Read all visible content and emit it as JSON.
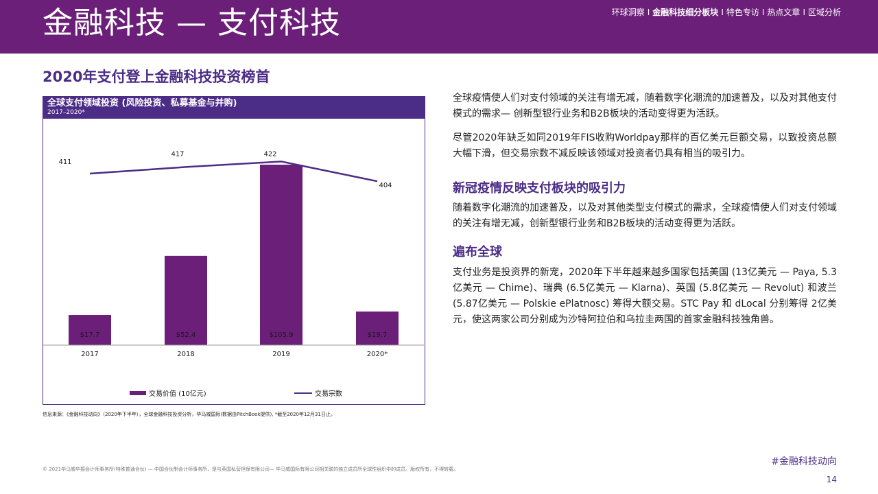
{
  "header": {
    "title": "金融科技 — 支付科技",
    "nav": [
      "环球洞察",
      "金融科技细分板块",
      "特色专访",
      "热点文章",
      "区域分析"
    ],
    "separator": "I",
    "active_index": 1
  },
  "left": {
    "section_title": "2020年支付登上金融科技投资榜首",
    "chart_title": "全球支付领域投资 (风险投资、私募基金与并购)",
    "chart_subtitle": "2017–2020*",
    "source": "信息来源：《金融科技动向》（2020年下半年），全球金融科技投资分析，毕马威国际(数据由PitchBook提供), *截至2020年12月31日止。"
  },
  "chart_data": {
    "type": "bar",
    "categories": [
      "2017",
      "2018",
      "2019",
      "2020*"
    ],
    "series": [
      {
        "name": "交易价值 (10亿元)",
        "type": "bar",
        "values": [
          17.7,
          52.4,
          105.9,
          19.7
        ],
        "labels": [
          "$17.7",
          "$52.4",
          "$105.9",
          "$19.7"
        ]
      },
      {
        "name": "交易宗数",
        "type": "line",
        "values": [
          411,
          417,
          422,
          404
        ],
        "labels": [
          "411",
          "417",
          "422",
          "404"
        ]
      }
    ],
    "bar_ylim": [
      0,
      112
    ],
    "line_ylim": [
      0,
      440
    ],
    "colors": {
      "bar": "#6b1f78",
      "line": "#4b2c86"
    },
    "legend_position": "bottom",
    "grid": false
  },
  "right": {
    "p1": "全球疫情使人们对支付领域的关注有增无减，随着数字化潮流的加速普及，以及对其他支付模式的需求— 创新型银行业务和B2B板块的活动变得更为活跃。",
    "p2": "尽管2020年缺乏如同2019年FIS收购Worldpay那样的百亿美元巨额交易，以致投资总额大幅下滑，但交易宗数不减反映该领域对投资者仍具有相当的吸引力。",
    "h2": "新冠疫情反映支付板块的吸引力",
    "p3": "随着数字化潮流的加速普及，以及对其他类型支付模式的需求，全球疫情使人们对支付领域的关注有增无减，创新型银行业务和B2B板块的活动变得更为活跃。",
    "h3": "遍布全球",
    "p4": "支付业务是投资界的新宠，2020年下半年越来越多国家包括美国 (13亿美元 — Paya, 5.3亿美元 — Chime)、瑞典 (6.5亿美元 — Klarna)、英国 (5.8亿美元 — Revolut) 和波兰 (5.87亿美元 — Polskie ePlatnosc) 筹得大额交易。STC Pay 和 dLocal 分别筹得 2亿美元，使这两家公司分别成为沙特阿拉伯和乌拉圭两国的首家金融科技独角兽。"
  },
  "footer": {
    "copyright": "© 2021毕马威华振会计师事务所(特殊普通合伙) — 中国合伙制会计师事务所，是与英国私营担保有限公司— 毕马威国际有限公司相关联的独立成员所全球性组织中的成员。版权所有，不得转载。",
    "hashtag": "#金融科技动向",
    "page_number": "14"
  }
}
